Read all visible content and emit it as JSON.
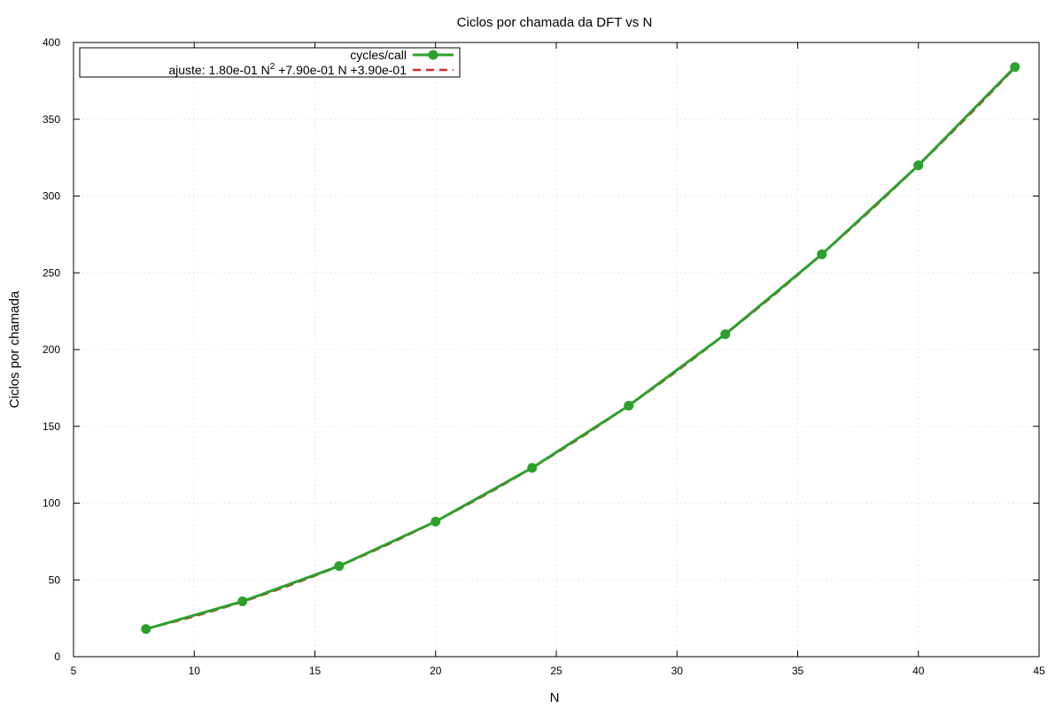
{
  "chart_data": {
    "type": "line",
    "title": "Ciclos por chamada da DFT vs N",
    "xlabel": "N",
    "ylabel": "Ciclos por chamada",
    "xlim": [
      5,
      45
    ],
    "ylim": [
      0,
      400
    ],
    "xticks": [
      5,
      10,
      15,
      20,
      25,
      30,
      35,
      40,
      45
    ],
    "yticks": [
      0,
      50,
      100,
      150,
      200,
      250,
      300,
      350,
      400
    ],
    "grid": true,
    "legend_position": "top-left",
    "series": [
      {
        "name": "cycles/call",
        "style": "line-with-markers",
        "color": "#2ca02c",
        "x": [
          8,
          12,
          16,
          20,
          24,
          28,
          32,
          36,
          40,
          44
        ],
        "y": [
          18,
          36,
          59,
          88,
          123,
          163.5,
          210,
          262,
          320,
          384
        ]
      },
      {
        "name_parts": {
          "prefix": "ajuste: 1.80e-01 N",
          "superscript": "2",
          "suffix": " +7.90e-01 N +3.90e-01"
        },
        "style": "dashed",
        "color": "#d62728",
        "coefficients": {
          "a": 0.18,
          "b": 0.79,
          "c": 0.39
        }
      }
    ]
  }
}
